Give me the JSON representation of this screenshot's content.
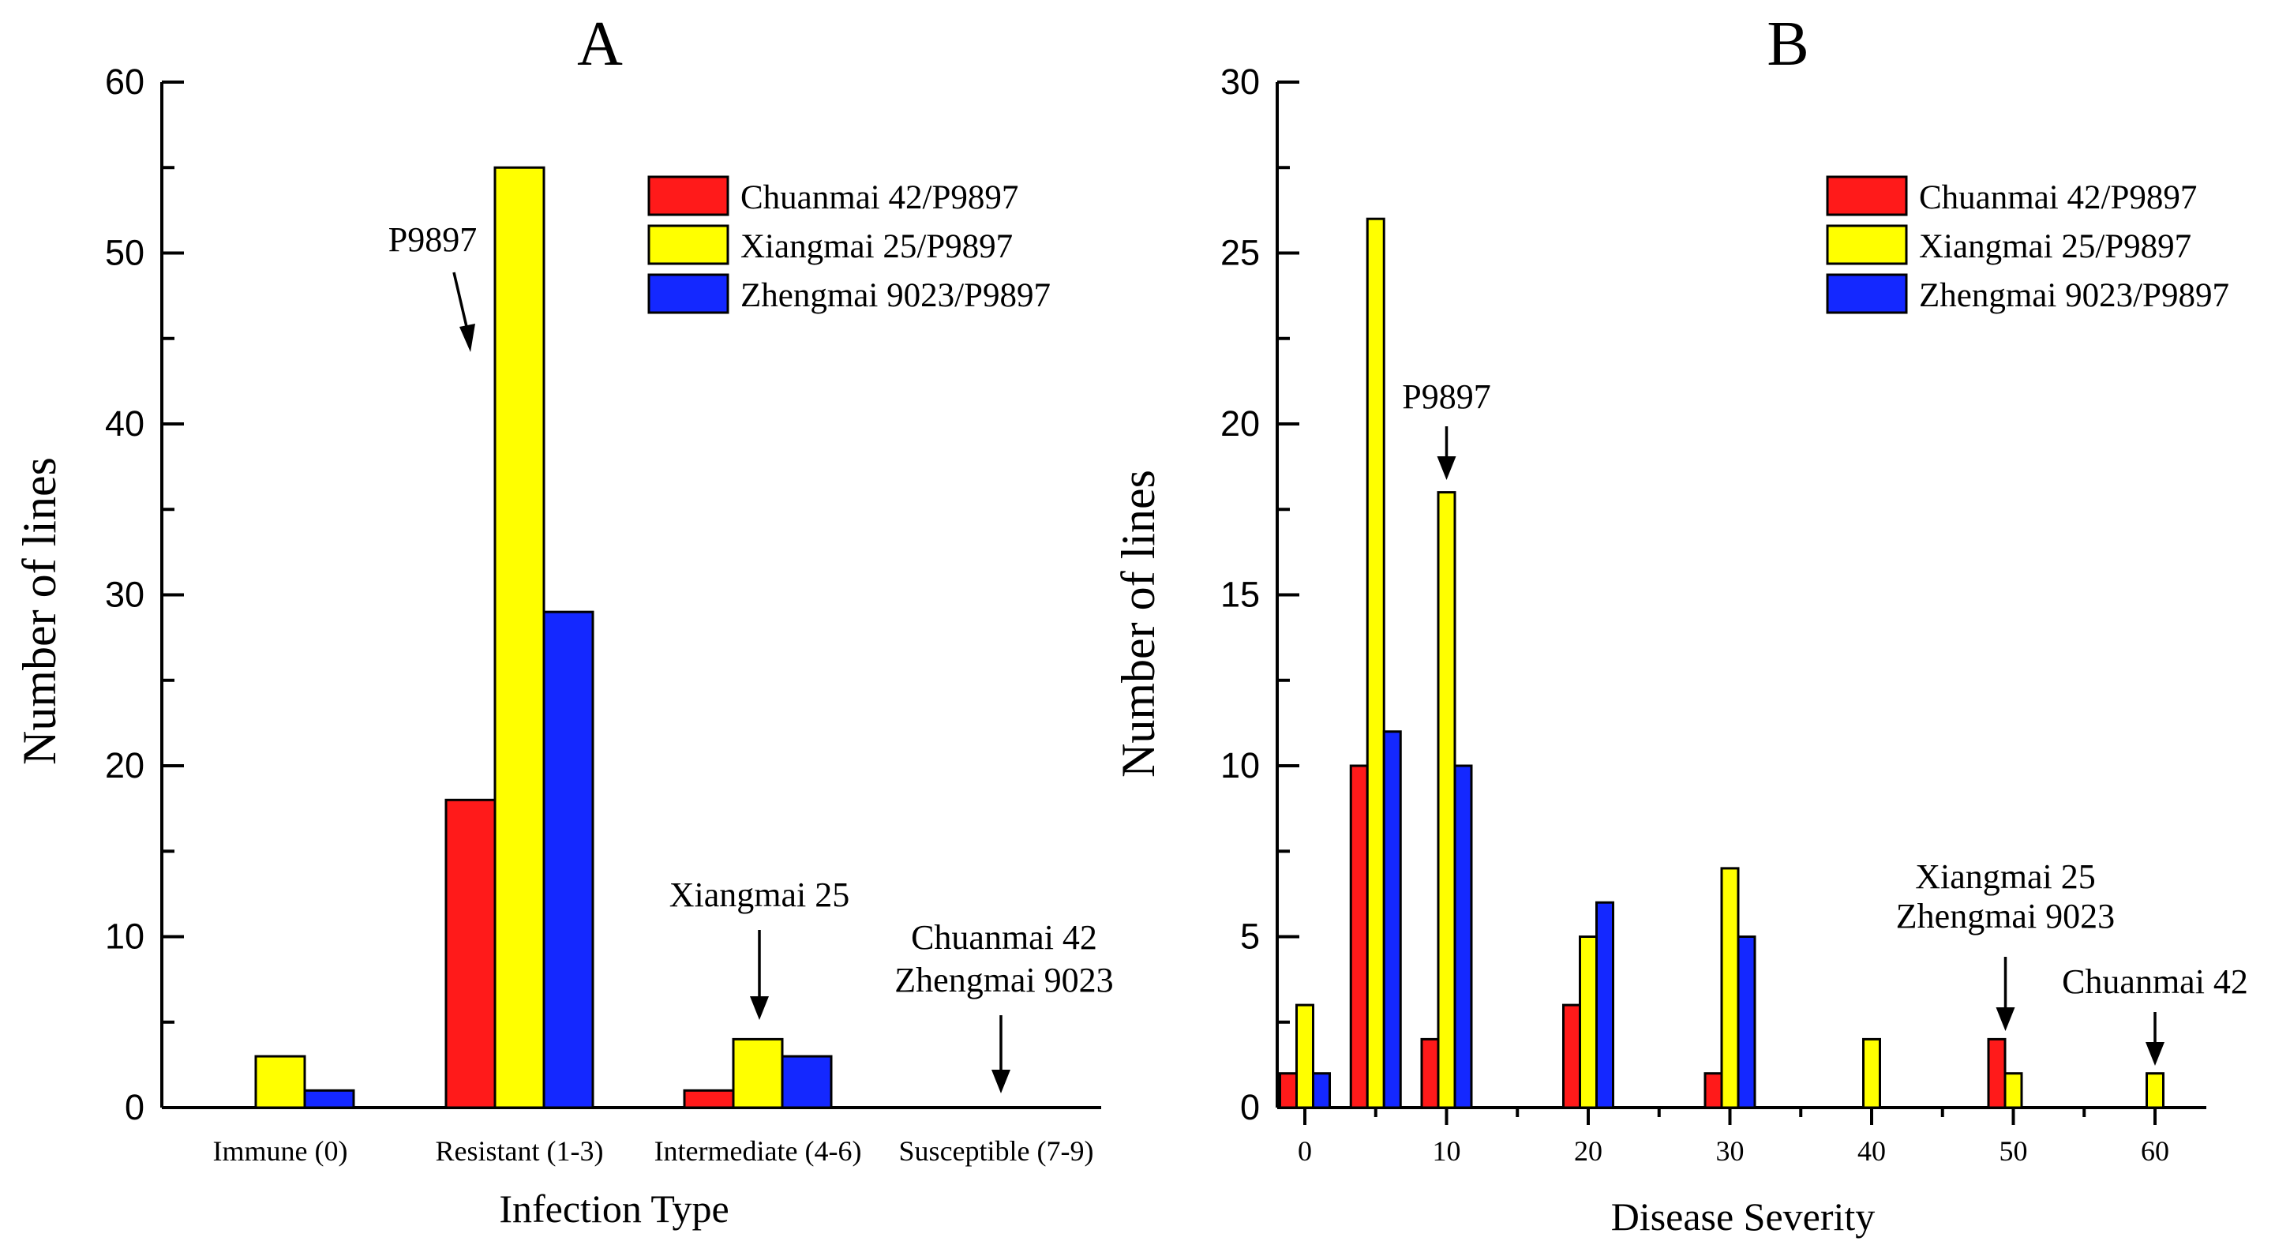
{
  "colors": {
    "series_a": "#ff1a1a",
    "series_b": "#ffff00",
    "series_c": "#1428ff",
    "outline": "#000000"
  },
  "chart_data": [
    {
      "panel_label": "A",
      "type": "bar",
      "categories": [
        "Immune (0)",
        "Resistant (1-3)",
        "Intermediate (4-6)",
        "Susceptible (7-9)"
      ],
      "series": [
        {
          "name": "Chuanmai 42/P9897",
          "values": [
            0,
            18,
            1,
            0
          ]
        },
        {
          "name": "Xiangmai 25/P9897",
          "values": [
            3,
            55,
            4,
            0
          ]
        },
        {
          "name": "Zhengmai 9023/P9897",
          "values": [
            1,
            29,
            3,
            0
          ]
        }
      ],
      "xlabel": "Infection Type",
      "ylabel": "Number of  lines",
      "ylim": [
        0,
        60
      ],
      "yticks": [
        0,
        10,
        20,
        30,
        40,
        50,
        60
      ],
      "legend_position": "top-right",
      "annotations": [
        {
          "lines": [
            "P9897"
          ],
          "category": 1,
          "series": 0
        },
        {
          "lines": [
            "Xiangmai 25"
          ],
          "category": 2,
          "series": 1
        },
        {
          "lines": [
            "Chuanmai 42",
            "Zhengmai 9023"
          ],
          "category": 3,
          "series": 2
        }
      ]
    },
    {
      "panel_label": "B",
      "type": "bar",
      "x": [
        0,
        5,
        10,
        20,
        30,
        40,
        50,
        60
      ],
      "xticks": [
        0,
        10,
        20,
        30,
        40,
        50,
        60
      ],
      "series": [
        {
          "name": "Chuanmai 42/P9897",
          "values": [
            1,
            10,
            2,
            3,
            1,
            0,
            2,
            0
          ]
        },
        {
          "name": "Xiangmai 25/P9897",
          "values": [
            3,
            26,
            18,
            5,
            7,
            2,
            1,
            1
          ]
        },
        {
          "name": "Zhengmai 9023/P9897",
          "values": [
            1,
            11,
            10,
            6,
            5,
            0,
            0,
            0
          ]
        }
      ],
      "xlabel": "Disease Severity",
      "ylabel": "Number of lines",
      "xlim": [
        -2,
        64
      ],
      "ylim": [
        0,
        30
      ],
      "yticks": [
        0,
        5,
        10,
        15,
        20,
        25,
        30
      ],
      "legend_position": "top-right",
      "annotations": [
        {
          "lines": [
            "P9897"
          ],
          "x": 10
        },
        {
          "lines": [
            "Xiangmai 25",
            "Zhengmai 9023"
          ],
          "x": 50
        },
        {
          "lines": [
            "Chuanmai 42"
          ],
          "x": 60
        }
      ]
    }
  ]
}
